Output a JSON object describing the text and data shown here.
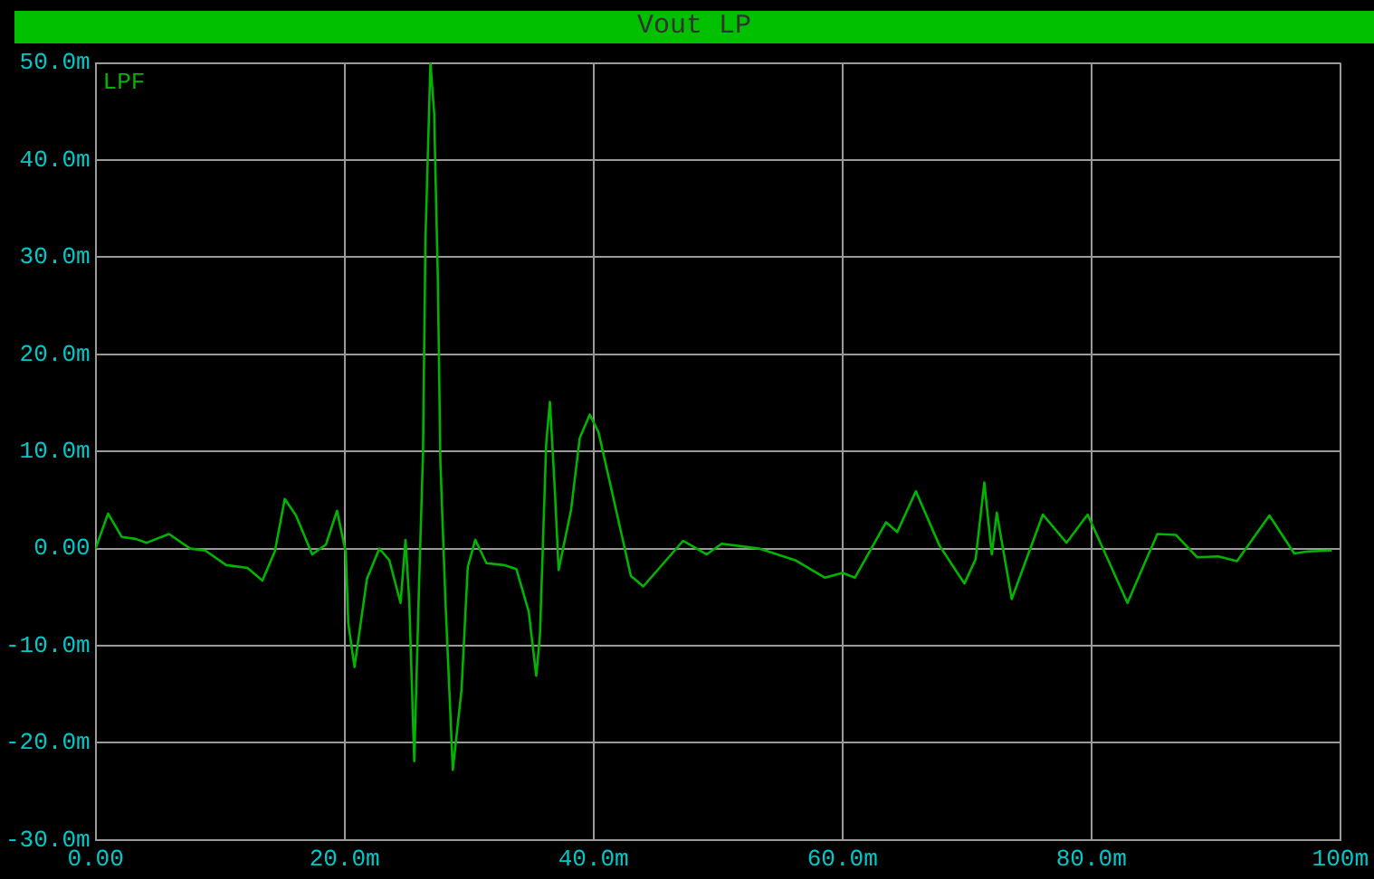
{
  "chart_data": {
    "type": "line",
    "title": "Vout LP",
    "legend": "top left",
    "grid": true,
    "marker": "none",
    "line_style": "solid",
    "xlim": [
      0,
      100
    ],
    "xticks": [
      {
        "value": 0,
        "label": "0.00"
      },
      {
        "value": 20,
        "label": "20.0m"
      },
      {
        "value": 40,
        "label": "40.0m"
      },
      {
        "value": 60,
        "label": "60.0m"
      },
      {
        "value": 80,
        "label": "80.0m"
      },
      {
        "value": 100,
        "label": "100m"
      }
    ],
    "ylim": [
      -30,
      50
    ],
    "yticks": [
      {
        "value": -30,
        "label": "-30.0m"
      },
      {
        "value": -20,
        "label": "-20.0m"
      },
      {
        "value": -10,
        "label": "-10.0m"
      },
      {
        "value": 0,
        "label": "0.00"
      },
      {
        "value": 10,
        "label": "10.0m"
      },
      {
        "value": 20,
        "label": "20.0m"
      },
      {
        "value": 30,
        "label": "30.0m"
      },
      {
        "value": 40,
        "label": "40.0m"
      },
      {
        "value": 50,
        "label": "50.0m"
      }
    ],
    "series": [
      {
        "name": "LPF",
        "color": "#00b400",
        "x": [
          0,
          1.0,
          2.1,
          3.2,
          4.1,
          5.9,
          7.6,
          8.8,
          10.5,
          12.2,
          13.4,
          14.4,
          15.2,
          16.1,
          17.4,
          18.5,
          19.4,
          20.1,
          20.3,
          20.8,
          21.8,
          22.8,
          23.6,
          24.5,
          24.9,
          25.2,
          25.6,
          26.0,
          26.3,
          26.5,
          26.9,
          27.2,
          27.5,
          27.7,
          28.1,
          28.7,
          29.4,
          29.9,
          30.5,
          31.4,
          32.8,
          33.8,
          34.8,
          35.4,
          35.7,
          36.2,
          36.5,
          36.9,
          37.2,
          38.2,
          38.9,
          39.7,
          40.4,
          41.6,
          43.0,
          44.0,
          47.2,
          49.1,
          50.3,
          53.3,
          56.2,
          58.6,
          60.0,
          61.0,
          63.5,
          64.4,
          65.9,
          67.8,
          69.8,
          70.7,
          71.4,
          72.0,
          72.4,
          73.6,
          76.1,
          78.0,
          79.7,
          82.9,
          85.3,
          86.8,
          88.5,
          90.2,
          91.7,
          94.3,
          96.3,
          97.4,
          99.3
        ],
        "values": [
          0,
          3.6,
          1.2,
          1.0,
          0.6,
          1.5,
          0,
          -0.2,
          -1.7,
          -2.0,
          -3.3,
          -0.3,
          5.1,
          3.4,
          -0.6,
          0.4,
          3.9,
          -0.4,
          -7.7,
          -12.2,
          -3.1,
          0,
          -1.2,
          -5.6,
          0.9,
          -5.4,
          -21.9,
          -3.1,
          9.6,
          31.8,
          50.0,
          44.8,
          27.5,
          8.9,
          -5.2,
          -22.8,
          -14.5,
          -1.9,
          0.9,
          -1.5,
          -1.7,
          -2.1,
          -6.5,
          -13.1,
          -8.9,
          10.8,
          15.1,
          5.9,
          -2.2,
          4.0,
          11.4,
          13.8,
          12.0,
          5.2,
          -2.8,
          -3.9,
          0.8,
          -0.6,
          0.5,
          0,
          -1.2,
          -3.0,
          -2.5,
          -3.0,
          2.7,
          1.7,
          5.9,
          0.3,
          -3.6,
          -1.1,
          6.8,
          -0.6,
          3.7,
          -5.2,
          3.5,
          0.6,
          3.5,
          -5.6,
          1.5,
          1.4,
          -0.9,
          -0.8,
          -1.3,
          3.4,
          -0.5,
          -0.3,
          -0.2
        ]
      }
    ]
  }
}
